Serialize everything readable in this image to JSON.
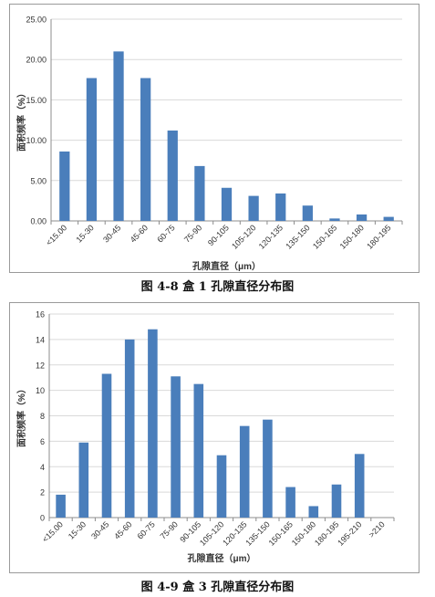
{
  "figures": [
    {
      "caption": "图 4-8 盒 1 孔隙直径分布图"
    },
    {
      "caption": "图 4-9 盒 3 孔隙直径分布图"
    }
  ],
  "colors": {
    "bar": "#4a7ebb",
    "grid": "#d9d9d9",
    "axis": "#8c8c8c"
  },
  "chart_data": [
    {
      "type": "bar",
      "title": "",
      "xlabel": "孔隙直径（μm）",
      "ylabel": "面积频率（%）",
      "ylim": [
        0,
        25
      ],
      "yticks": [
        "0.00",
        "5.00",
        "10.00",
        "15.00",
        "20.00",
        "25.00"
      ],
      "ytick_values": [
        0,
        5,
        10,
        15,
        20,
        25
      ],
      "grid": true,
      "categories": [
        "<15.00",
        "15-30",
        "30-45",
        "45-60",
        "60-75",
        "75-90",
        "90-105",
        "105-120",
        "120-135",
        "135-150",
        "150-165",
        "150-180",
        "180-195"
      ],
      "values": [
        8.6,
        17.7,
        21.0,
        17.7,
        11.2,
        6.8,
        4.1,
        3.1,
        3.4,
        1.9,
        0.3,
        0.8,
        0.5
      ]
    },
    {
      "type": "bar",
      "title": "",
      "xlabel": "孔隙直径（μm）",
      "ylabel": "面积频率（%）",
      "ylim": [
        0,
        16
      ],
      "yticks": [
        "0",
        "2",
        "4",
        "6",
        "8",
        "10",
        "12",
        "14",
        "16"
      ],
      "ytick_values": [
        0,
        2,
        4,
        6,
        8,
        10,
        12,
        14,
        16
      ],
      "grid": true,
      "categories": [
        "<15.00",
        "15-30",
        "30-45",
        "45-60",
        "60-75",
        "75-90",
        "90-105",
        "105-120",
        "120-135",
        "135-150",
        "150-165",
        "150-180",
        "180-195",
        "195-210",
        ">210"
      ],
      "values": [
        1.8,
        5.9,
        11.3,
        14.0,
        14.8,
        11.1,
        10.5,
        4.9,
        7.2,
        7.7,
        2.4,
        0.9,
        2.6,
        5.0,
        0
      ]
    }
  ]
}
